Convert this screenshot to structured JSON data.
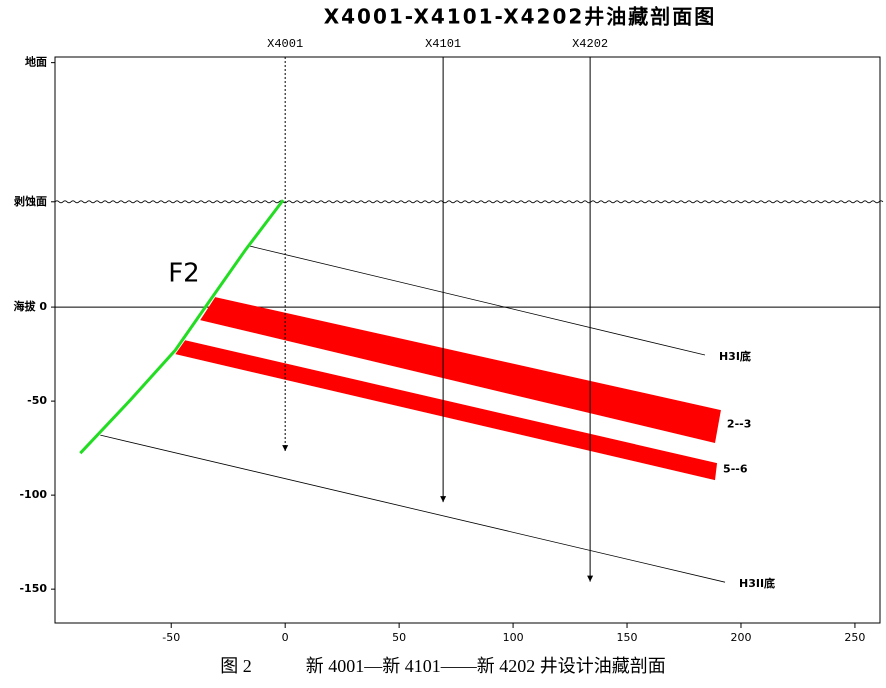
{
  "chart_data": {
    "type": "section",
    "title": "X4001-X4101-X4202井油藏剖面图",
    "xlim": [
      -101,
      261
    ],
    "ylim": [
      -168,
      133
    ],
    "xticks": [
      -50,
      0,
      50,
      100,
      150,
      200,
      250
    ],
    "yticks": [
      {
        "value": 130,
        "label": "地面"
      },
      {
        "value": 56,
        "label": "剥蚀面"
      },
      {
        "value": 0,
        "label": "海拔 0"
      },
      -50,
      -100,
      -150
    ],
    "erosion_level": 56,
    "sea_level": 0,
    "wells": [
      {
        "name": "X4001",
        "x": 0,
        "bottom": -76.6,
        "dashed": true
      },
      {
        "name": "X4101",
        "x": 69.3,
        "bottom": -103.7,
        "dashed": false
      },
      {
        "name": "X4202",
        "x": 133.8,
        "bottom": -146,
        "dashed": false
      }
    ],
    "fault": {
      "name": "F2",
      "color": "#22dd22",
      "x": [
        -89.9,
        -68,
        -48.2,
        -32.9,
        -17.5,
        -0.9
      ],
      "y": [
        -77.7,
        -49.5,
        -22.9,
        3.7,
        30.3,
        56.9
      ]
    },
    "horizons": [
      {
        "name": "H3I底",
        "x": [
          -15.4,
          184.2
        ],
        "y": [
          32.4,
          -25.5
        ]
      },
      {
        "name": "H3II底",
        "x": [
          -81.1,
          193
        ],
        "y": [
          -68.1,
          -146.3
        ]
      }
    ],
    "layers": [
      {
        "name": "2--3",
        "color": "#ff0000",
        "x": [
          -30.7,
          191.2,
          188.6,
          -37.3
        ],
        "y": [
          5.3,
          -54.8,
          -72.3,
          -6.9
        ]
      },
      {
        "name": "5--6",
        "color": "#ff0000",
        "x": [
          -43.9,
          189.5,
          188.6,
          -48.2
        ],
        "y": [
          -17.6,
          -83,
          -92,
          -25
        ]
      }
    ]
  },
  "caption": "图 2　　　新 4001—新 4101——新 4202 井设计油藏剖面"
}
